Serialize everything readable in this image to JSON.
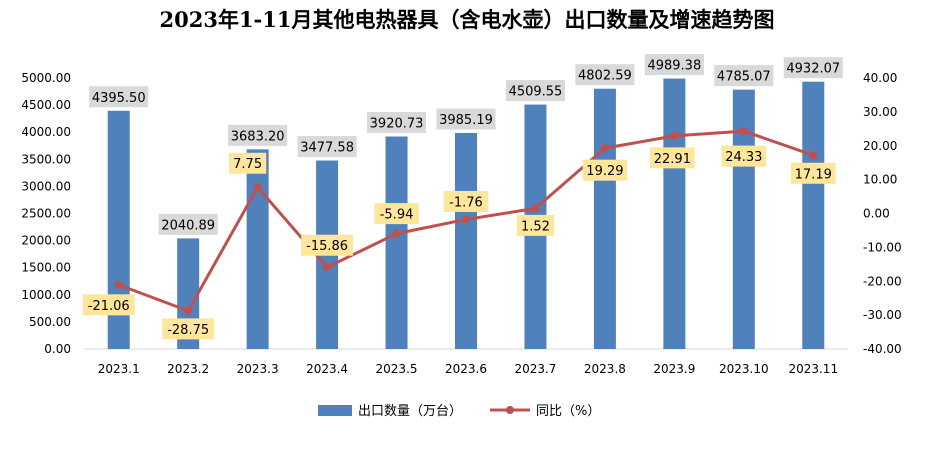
{
  "chart_data": {
    "type": "bar",
    "title": "2023年1-11月其他电热器具（含电水壶）出口数量及增速趋势图",
    "categories": [
      "2023.1",
      "2023.2",
      "2023.3",
      "2023.4",
      "2023.5",
      "2023.6",
      "2023.7",
      "2023.8",
      "2023.9",
      "2023.10",
      "2023.11"
    ],
    "series": [
      {
        "name": "出口数量（万台）",
        "type": "bar",
        "axis": "left",
        "color": "#4f81bd",
        "values": [
          4395.5,
          2040.89,
          3683.2,
          3477.58,
          3920.73,
          3985.19,
          4509.55,
          4802.59,
          4989.38,
          4785.07,
          4932.07
        ],
        "labels": [
          "4395.50",
          "2040.89",
          "3683.20",
          "3477.58",
          "3920.73",
          "3985.19",
          "4509.55",
          "4802.59",
          "4989.38",
          "4785.07",
          "4932.07"
        ]
      },
      {
        "name": "同比（%）",
        "type": "line",
        "axis": "right",
        "color": "#c0504d",
        "values": [
          -21.06,
          -28.75,
          7.75,
          -15.86,
          -5.94,
          -1.76,
          1.52,
          19.29,
          22.91,
          24.33,
          17.19
        ],
        "labels": [
          "-21.06",
          "-28.75",
          "7.75",
          "-15.86",
          "-5.94",
          "-1.76",
          "1.52",
          "19.29",
          "22.91",
          "24.33",
          "17.19"
        ]
      }
    ],
    "y_left": {
      "ylim": [
        0,
        5000
      ],
      "ticks": [
        "0.00",
        "500.00",
        "1000.00",
        "1500.00",
        "2000.00",
        "2500.00",
        "3000.00",
        "3500.00",
        "4000.00",
        "4500.00",
        "5000.00"
      ]
    },
    "y_right": {
      "ylim": [
        -40,
        40
      ],
      "ticks": [
        "-40.00",
        "-30.00",
        "-20.00",
        "-10.00",
        "0.00",
        "10.00",
        "20.00",
        "30.00",
        "40.00"
      ]
    },
    "grid": false,
    "legend_position": "bottom",
    "bar_label_color": "#d9d9d9",
    "line_label_color": "#ffe699"
  }
}
